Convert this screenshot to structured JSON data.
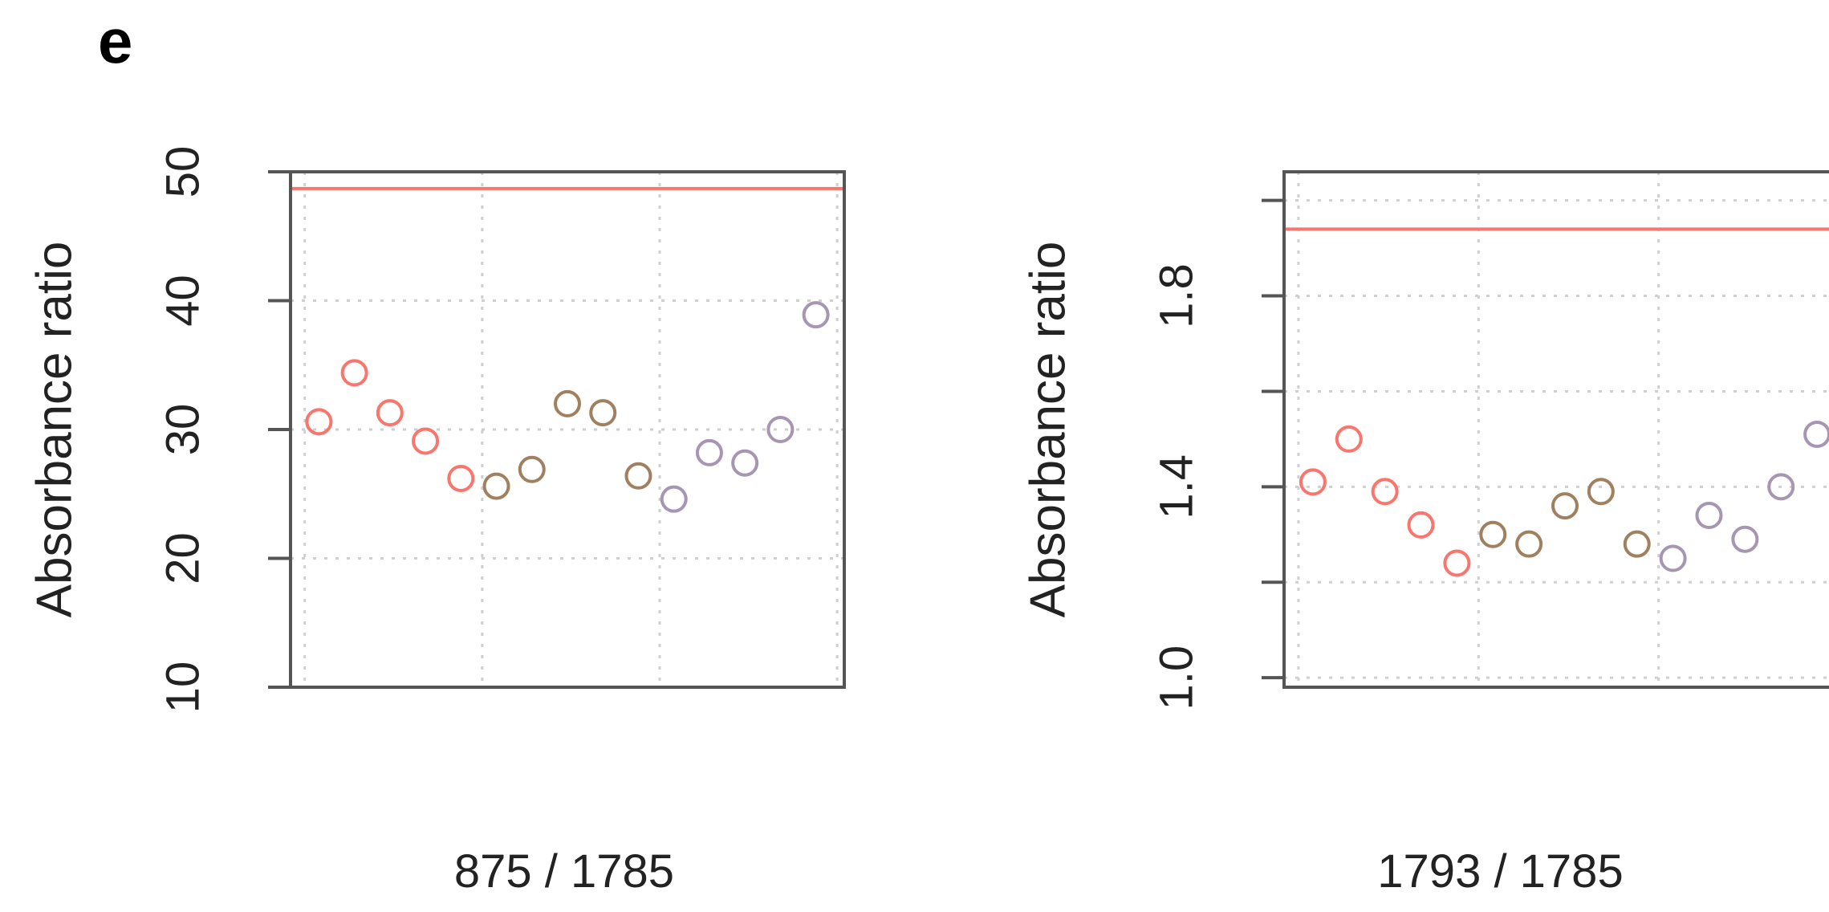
{
  "panel_label": "e",
  "colors": {
    "group_1": "#f8766d",
    "group_2": "#a0805e",
    "group_3": "#a696b2",
    "reference_line": "#f8766d"
  },
  "chart_data": [
    {
      "type": "scatter",
      "title": "",
      "xlabel": "875 / 1785",
      "ylabel": "Absorbance ratio",
      "x": [
        1,
        2,
        3,
        4,
        5,
        6,
        7,
        8,
        9,
        10,
        11,
        12,
        13,
        14,
        15
      ],
      "ylim": [
        10,
        50
      ],
      "xlim": [
        0.2,
        15.8
      ],
      "yticks": [
        10,
        20,
        30,
        40,
        50
      ],
      "ytick_labels": [
        "10",
        "20",
        "30",
        "40",
        "50"
      ],
      "grid": true,
      "grid_x": [
        0.6,
        5.6,
        10.6,
        15.6
      ],
      "reference_line": 48.7,
      "series": [
        {
          "color": "#f8766d",
          "x": [
            1,
            2,
            3,
            4,
            5
          ],
          "values": [
            30.6,
            34.4,
            31.3,
            29.1,
            26.2
          ]
        },
        {
          "color": "#a0805e",
          "x": [
            6,
            7,
            8,
            9,
            10
          ],
          "values": [
            25.6,
            26.9,
            32.0,
            31.3,
            26.4
          ]
        },
        {
          "color": "#a696b2",
          "x": [
            11,
            12,
            13,
            14,
            15
          ],
          "values": [
            24.6,
            28.2,
            27.4,
            30.0,
            38.9
          ]
        }
      ]
    },
    {
      "type": "scatter",
      "title": "",
      "xlabel": "1793 / 1785",
      "ylabel": "Absorbance ratio",
      "x": [
        1,
        2,
        3,
        4,
        5,
        6,
        7,
        8,
        9,
        10,
        11,
        12,
        13,
        14,
        15
      ],
      "ylim": [
        0.98,
        2.06
      ],
      "xlim": [
        0.2,
        15.8
      ],
      "yticks": [
        1.0,
        1.2,
        1.4,
        1.6,
        1.8,
        2.0
      ],
      "ytick_labels": [
        "1.0",
        "",
        "1.4",
        "",
        "1.8",
        ""
      ],
      "grid": true,
      "grid_x": [
        0.6,
        5.6,
        10.6,
        15.6
      ],
      "reference_line": 1.94,
      "series": [
        {
          "color": "#f8766d",
          "x": [
            1,
            2,
            3,
            4,
            5
          ],
          "values": [
            1.41,
            1.5,
            1.39,
            1.32,
            1.24
          ]
        },
        {
          "color": "#a0805e",
          "x": [
            6,
            7,
            8,
            9,
            10
          ],
          "values": [
            1.3,
            1.28,
            1.36,
            1.39,
            1.28
          ]
        },
        {
          "color": "#a696b2",
          "x": [
            11,
            12,
            13,
            14,
            15
          ],
          "values": [
            1.25,
            1.34,
            1.29,
            1.4,
            1.51
          ]
        }
      ]
    }
  ]
}
